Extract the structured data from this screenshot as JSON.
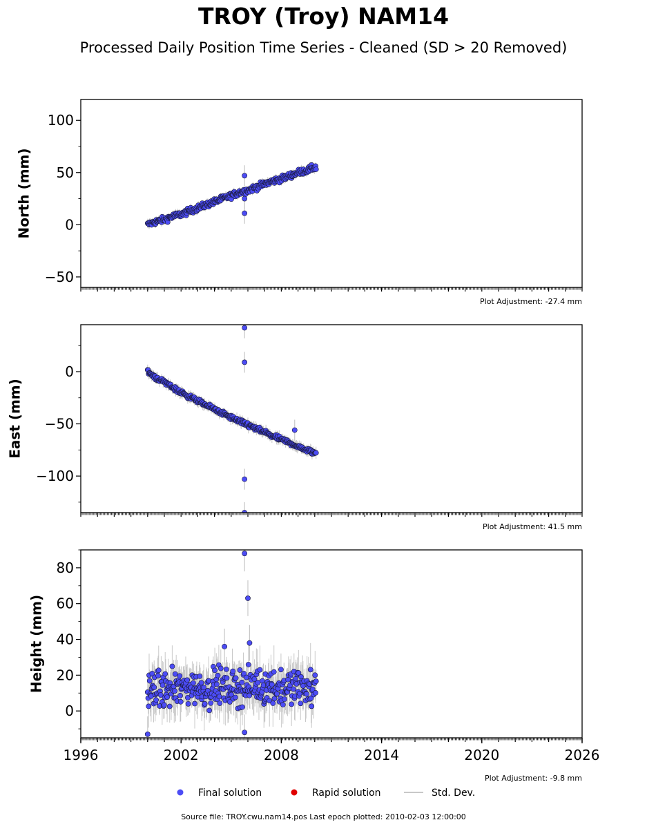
{
  "title": "TROY (Troy) NAM14",
  "subtitle": "Processed Daily Position Time Series - Cleaned (SD > 20 Removed)",
  "legend": {
    "final": "Final solution",
    "rapid": "Rapid solution",
    "std": "Std. Dev."
  },
  "footer": "Source file: TROY.cwu.nam14.pos  Last epoch plotted: 2010-02-03 12:00:00",
  "colors": {
    "final": "#4c4cf5",
    "rapid": "#e00000",
    "std": "#c8c8c8",
    "marker_edge": "#1a1a3a"
  },
  "chart_data": [
    {
      "type": "scatter",
      "ylabel": "North (mm)",
      "adjustment": "Plot Adjustment: -27.4 mm",
      "xlim": [
        1996,
        2026
      ],
      "ylim": [
        -60,
        120
      ],
      "xticks": [],
      "yticks": [
        -50,
        0,
        50,
        100
      ],
      "series": [
        {
          "x": [
            2000.0,
            2000.5,
            2001.0,
            2001.5,
            2002.0,
            2002.5,
            2003.0,
            2003.5,
            2004.0,
            2004.5,
            2005.0,
            2005.5,
            2006.0,
            2006.5,
            2007.0,
            2007.5,
            2008.0,
            2008.5,
            2009.0,
            2009.5,
            2010.0
          ],
          "y": [
            0,
            3,
            5,
            8,
            10,
            13,
            16,
            19,
            22,
            25,
            28,
            31,
            33,
            36,
            39,
            42,
            44,
            47,
            50,
            52,
            55
          ],
          "outliers": [
            {
              "x": 2005.8,
              "y": 47
            },
            {
              "x": 2005.8,
              "y": 11
            },
            {
              "x": 2005.8,
              "y": 25
            }
          ],
          "trend": [
            0,
            55
          ],
          "scatter": 2.0,
          "sd": 3
        }
      ]
    },
    {
      "type": "scatter",
      "ylabel": "East (mm)",
      "adjustment": "Plot Adjustment: 41.5 mm",
      "xlim": [
        1996,
        2026
      ],
      "ylim": [
        -135,
        45
      ],
      "xticks": [],
      "yticks": [
        -100,
        -50,
        0
      ],
      "series": [
        {
          "x": [
            2000.0,
            2000.5,
            2001.0,
            2001.5,
            2002.0,
            2002.5,
            2003.0,
            2003.5,
            2004.0,
            2004.5,
            2005.0,
            2005.5,
            2006.0,
            2006.5,
            2007.0,
            2007.5,
            2008.0,
            2008.5,
            2009.0,
            2009.5,
            2010.0
          ],
          "y": [
            0,
            -6,
            -10,
            -15,
            -20,
            -24,
            -28,
            -32,
            -36,
            -40,
            -44,
            -48,
            -51,
            -55,
            -58,
            -62,
            -65,
            -68,
            -72,
            -75,
            -78
          ],
          "outliers": [
            {
              "x": 2005.8,
              "y": 42
            },
            {
              "x": 2005.8,
              "y": 9
            },
            {
              "x": 2005.8,
              "y": -103
            },
            {
              "x": 2005.8,
              "y": -135
            },
            {
              "x": 2008.8,
              "y": -56
            }
          ],
          "trend": [
            0,
            -78
          ],
          "scatter": 1.5,
          "sd": 4
        }
      ]
    },
    {
      "type": "scatter",
      "ylabel": "Height (mm)",
      "adjustment": "Plot Adjustment: -9.8 mm",
      "xlim": [
        1996,
        2026
      ],
      "ylim": [
        -15,
        90
      ],
      "xticks": [
        1996,
        2002,
        2008,
        2014,
        2020,
        2026
      ],
      "yticks": [
        0,
        20,
        40,
        60,
        80
      ],
      "series": [
        {
          "x": [
            2000.0,
            2000.5,
            2001.0,
            2001.5,
            2002.0,
            2002.5,
            2003.0,
            2003.5,
            2004.0,
            2004.5,
            2005.0,
            2005.5,
            2006.0,
            2006.5,
            2007.0,
            2007.5,
            2008.0,
            2008.5,
            2009.0,
            2009.5,
            2010.0
          ],
          "y": [
            10,
            12,
            11,
            13,
            12,
            14,
            13,
            12,
            14,
            13,
            12,
            14,
            13,
            15,
            13,
            14,
            12,
            13,
            14,
            12,
            13
          ],
          "outliers": [
            {
              "x": 2005.8,
              "y": 88
            },
            {
              "x": 2006.0,
              "y": 63
            },
            {
              "x": 2006.1,
              "y": 38
            },
            {
              "x": 2004.6,
              "y": 36
            },
            {
              "x": 2005.8,
              "y": -12
            },
            {
              "x": 2000.0,
              "y": -13
            }
          ],
          "trend": [
            12,
            13
          ],
          "scatter": 7,
          "sd": 10
        }
      ]
    }
  ]
}
